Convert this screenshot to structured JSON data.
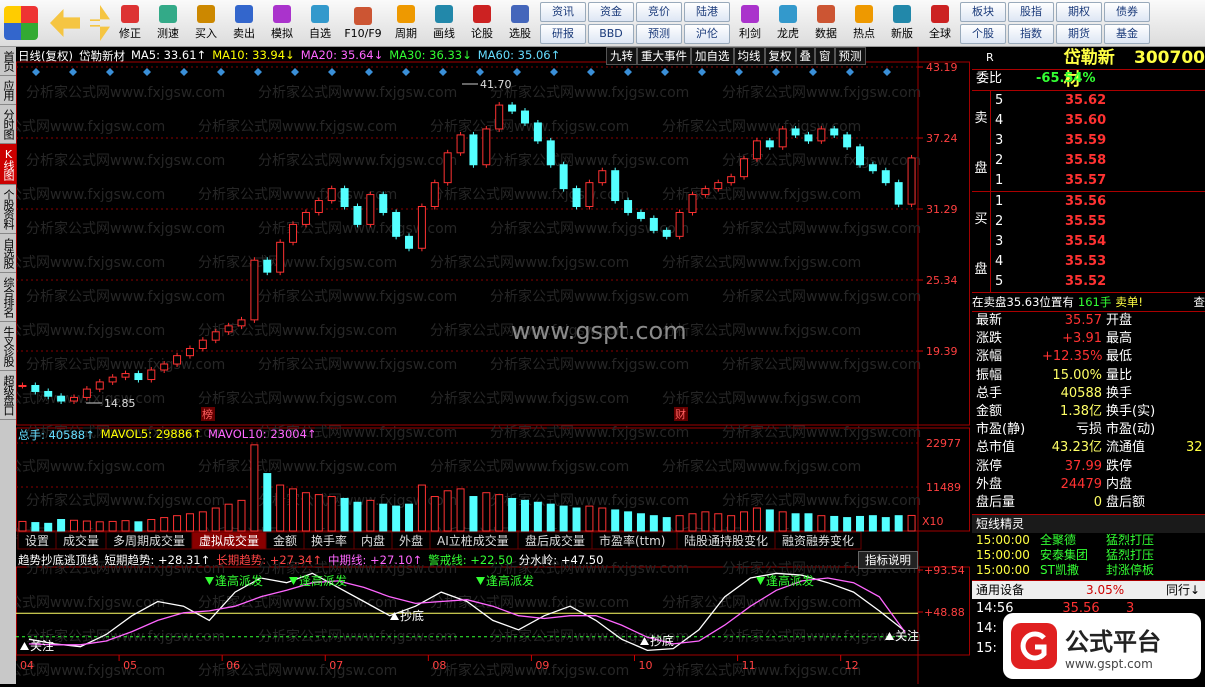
{
  "toolbar": {
    "buttons": [
      "修正",
      "测速",
      "买入",
      "卖出",
      "模拟",
      "自选",
      "F10/F9",
      "周期",
      "画线",
      "论股",
      "选股"
    ],
    "pairs": [
      [
        "资讯",
        "研报"
      ],
      [
        "资金",
        "BBD"
      ],
      [
        "竞价",
        "预测"
      ],
      [
        "陆港",
        "沪伦"
      ]
    ],
    "icons": [
      "利剑",
      "龙虎",
      "数据",
      "热点",
      "新版",
      "全球"
    ],
    "pairs2": [
      [
        "板块",
        "个股"
      ],
      [
        "股指",
        "指数"
      ],
      [
        "期权",
        "期货"
      ],
      [
        "债券",
        "基金"
      ]
    ]
  },
  "side_tabs": [
    "首页",
    "应用",
    "分时图",
    "K线图",
    "个股资料",
    "自选股",
    "综合排名",
    "牛叉诊股",
    "超级盘口"
  ],
  "active_side_tab": 3,
  "watermark": "分析家公式网www.fxjgsw.com",
  "site": "www.gspt.com",
  "chart_data": [
    {
      "type": "candlestick",
      "title": "日线(复权)",
      "name": "岱勒新材",
      "readouts": [
        {
          "text": "MA5: 33.61↑",
          "color": "#ffffff"
        },
        {
          "text": "MA10: 33.94↓",
          "color": "#ffff00"
        },
        {
          "text": "MA20: 35.64↓",
          "color": "#ff66ff"
        },
        {
          "text": "MA30: 36.33↓",
          "color": "#33ff33"
        },
        {
          "text": "MA60: 35.06↑",
          "color": "#66ddff"
        }
      ],
      "buttons": [
        "九转",
        "重大事件",
        "加自选",
        "均线",
        "复权",
        "叠",
        "窗",
        "预测"
      ],
      "categories": [
        "04",
        null,
        null,
        null,
        null,
        null,
        null,
        null,
        "05",
        null,
        null,
        null,
        null,
        null,
        null,
        null,
        "06",
        null,
        null,
        null,
        null,
        null,
        null,
        null,
        "07",
        null,
        null,
        null,
        null,
        null,
        null,
        null,
        "08",
        null,
        null,
        null,
        null,
        null,
        null,
        null,
        "09",
        null,
        null,
        null,
        null,
        null,
        null,
        null,
        "10",
        null,
        null,
        null,
        null,
        null,
        null,
        null,
        "11",
        null,
        null,
        null,
        null,
        null,
        null,
        null,
        "12",
        null,
        null,
        null,
        null,
        null
      ],
      "values": [
        16.5,
        16.0,
        15.6,
        15.2,
        15.5,
        16.2,
        16.8,
        17.2,
        17.5,
        17.0,
        17.8,
        18.3,
        19.0,
        19.6,
        20.3,
        21.0,
        21.5,
        22.0,
        27.0,
        26.0,
        28.5,
        30.0,
        31.0,
        32.0,
        33.0,
        31.5,
        30.0,
        32.5,
        31.0,
        29.0,
        28.0,
        31.5,
        33.5,
        36.0,
        37.5,
        35.0,
        38.0,
        40.0,
        39.5,
        38.5,
        37.0,
        35.0,
        33.0,
        31.5,
        33.5,
        34.5,
        32.0,
        31.0,
        30.5,
        29.5,
        29.0,
        31.0,
        32.5,
        33.0,
        33.5,
        34.0,
        35.5,
        37.0,
        36.5,
        38.0,
        37.5,
        37.0,
        38.0,
        37.5,
        36.5,
        35.0,
        34.5,
        33.5,
        31.7,
        35.57
      ],
      "up_color": "#ff3232",
      "down_color": "#54ffff",
      "ylim": [
        13.19,
        43.61
      ],
      "yticks": [
        43.19,
        37.24,
        31.29,
        25.34,
        19.39
      ],
      "grid": true,
      "annotations": [
        "41.70",
        "14.85"
      ],
      "markers": [
        "榜",
        "财"
      ]
    },
    {
      "type": "bar",
      "readouts": [
        {
          "text": "总手: 40588↑",
          "color": "#66ddff"
        },
        {
          "text": "MAVOL5: 29886↑",
          "color": "#ffff00"
        },
        {
          "text": "MAVOL10: 23004↑",
          "color": "#ff66ff"
        }
      ],
      "values": [
        2500,
        2200,
        2000,
        3000,
        2800,
        2600,
        2400,
        2500,
        2700,
        2400,
        3000,
        3500,
        4000,
        4500,
        5000,
        6000,
        7000,
        8000,
        22500,
        15000,
        12000,
        11000,
        10000,
        9500,
        9000,
        8500,
        7500,
        8000,
        7000,
        6500,
        7000,
        12000,
        9000,
        10500,
        11000,
        9000,
        10000,
        9500,
        8500,
        8000,
        7500,
        7000,
        6500,
        6000,
        6500,
        6000,
        5500,
        5000,
        4500,
        4000,
        3500,
        4000,
        4500,
        5000,
        4500,
        4000,
        5000,
        6000,
        5500,
        5000,
        4500,
        4500,
        4000,
        3800,
        3500,
        3800,
        4000,
        3500,
        4000,
        4059
      ],
      "ylim": [
        0,
        26894
      ],
      "yticks": [
        22977,
        11489
      ],
      "unit": "X10",
      "tabs": [
        "设置",
        "成交量",
        "多周期成交量",
        "虚拟成交量",
        "金额",
        "换手率",
        "内盘",
        "外盘",
        "AI立桩成交量",
        "盘后成交量",
        "市盈率(ttm)",
        "陆股通持股变化",
        "融资融券变化"
      ],
      "active_tab": 3
    },
    {
      "type": "line",
      "title": "趋势抄底逃顶线",
      "readouts": [
        {
          "text": "短期趋势: +28.31↑",
          "color": "#ffffff"
        },
        {
          "text": "长期趋势: +27.34↑",
          "color": "#ff4444"
        },
        {
          "text": "中期线: +27.10↑",
          "color": "#ff66ff"
        },
        {
          "text": "警戒线: +22.50",
          "color": "#33ff33",
          "value": 22.5
        },
        {
          "text": "分水岭: +47.50",
          "color": "#ffffff",
          "value": 47.5
        }
      ],
      "button": "指标说明",
      "series": [
        {
          "name": "短期趋势",
          "color": "#ffffff",
          "values": [
            20,
            15,
            12,
            25,
            45,
            60,
            55,
            40,
            70,
            85,
            80,
            90,
            75,
            60,
            45,
            55,
            70,
            60,
            40,
            30,
            45,
            55,
            40,
            20,
            8,
            10,
            30,
            65,
            85,
            90,
            88,
            80,
            70,
            50,
            28.31
          ]
        },
        {
          "name": "长期趋势",
          "color": "#ff66ff",
          "values": [
            15,
            14,
            14,
            18,
            28,
            40,
            48,
            50,
            55,
            65,
            72,
            80,
            82,
            75,
            65,
            58,
            60,
            62,
            55,
            45,
            42,
            45,
            45,
            35,
            22,
            15,
            18,
            35,
            55,
            72,
            82,
            85,
            80,
            65,
            27.34
          ]
        }
      ],
      "ylim": [
        3.16,
        96.73
      ],
      "yticks": [
        {
          "value": 93.54,
          "label": "+93.54"
        },
        {
          "value": 48.88,
          "label": "+48.88"
        }
      ],
      "signals": [
        "逢高派发",
        "逢高派发",
        "逢高派发",
        "逢高派发",
        "抄底",
        "抄底",
        "关注",
        "关注"
      ]
    }
  ],
  "quote": {
    "flag": "R",
    "name": "岱勒新材",
    "code": "300700",
    "weibi_label": "委比",
    "weibi": "-65.54%",
    "sell_label": [
      "卖",
      "盘"
    ],
    "buy_label": [
      "买",
      "盘"
    ],
    "sell": [
      [
        "5",
        "35.62"
      ],
      [
        "4",
        "35.60"
      ],
      [
        "3",
        "35.59"
      ],
      [
        "2",
        "35.58"
      ],
      [
        "1",
        "35.57"
      ]
    ],
    "buy": [
      [
        "1",
        "35.56"
      ],
      [
        "2",
        "35.55"
      ],
      [
        "3",
        "35.54"
      ],
      [
        "4",
        "35.53"
      ],
      [
        "5",
        "35.52"
      ]
    ],
    "notice": [
      "在卖盘35.63位置有",
      "161手",
      "卖单!",
      "查"
    ],
    "rows": [
      {
        "cells": [
          "最新",
          "35.57",
          "开盘"
        ],
        "color": "#ff3232"
      },
      {
        "cells": [
          "涨跌",
          "+3.91",
          "最高"
        ],
        "color": "#ff3232"
      },
      {
        "cells": [
          "涨幅",
          "+12.35%",
          "最低"
        ],
        "color": "#ff3232"
      },
      {
        "cells": [
          "振幅",
          "15.00%",
          "量比"
        ],
        "color": "#ffff66"
      },
      {
        "cells": [
          "总手",
          "40588",
          "换手"
        ],
        "color": "#ffff66"
      },
      {
        "cells": [
          "金额",
          "1.38亿",
          "换手(实)"
        ],
        "color": "#ffff66"
      },
      {
        "cells": [
          "市盈(静)",
          "亏损",
          "市盈(动)"
        ],
        "color": "#ffffff"
      },
      {
        "cells": [
          "总市值",
          "43.23亿",
          "流通值",
          "32"
        ],
        "color": "#ffff66"
      },
      {
        "cells": [
          "涨停",
          "37.99",
          "跌停"
        ],
        "color": "#ff3232"
      },
      {
        "cells": [
          "外盘",
          "24479",
          "内盘"
        ],
        "color": "#ff3232"
      },
      {
        "cells": [
          "盘后量",
          "0",
          "盘后额"
        ],
        "color": "#ffff66"
      }
    ],
    "sprite_title": "短线精灵",
    "sprite": [
      [
        "15:00:00",
        "全聚德",
        "猛烈打压"
      ],
      [
        "15:00:00",
        "安泰集团",
        "猛烈打压"
      ],
      [
        "15:00:00",
        "ST凯撒",
        "封涨停板"
      ]
    ],
    "industry": [
      "通用设备",
      "3.05%",
      "同行↓"
    ],
    "ticks": [
      [
        "14:56",
        "35.56",
        "3"
      ],
      [
        "14:"
      ],
      [
        "15:"
      ]
    ]
  },
  "logo": {
    "text": "公式平台",
    "url": "www.gspt.com"
  }
}
